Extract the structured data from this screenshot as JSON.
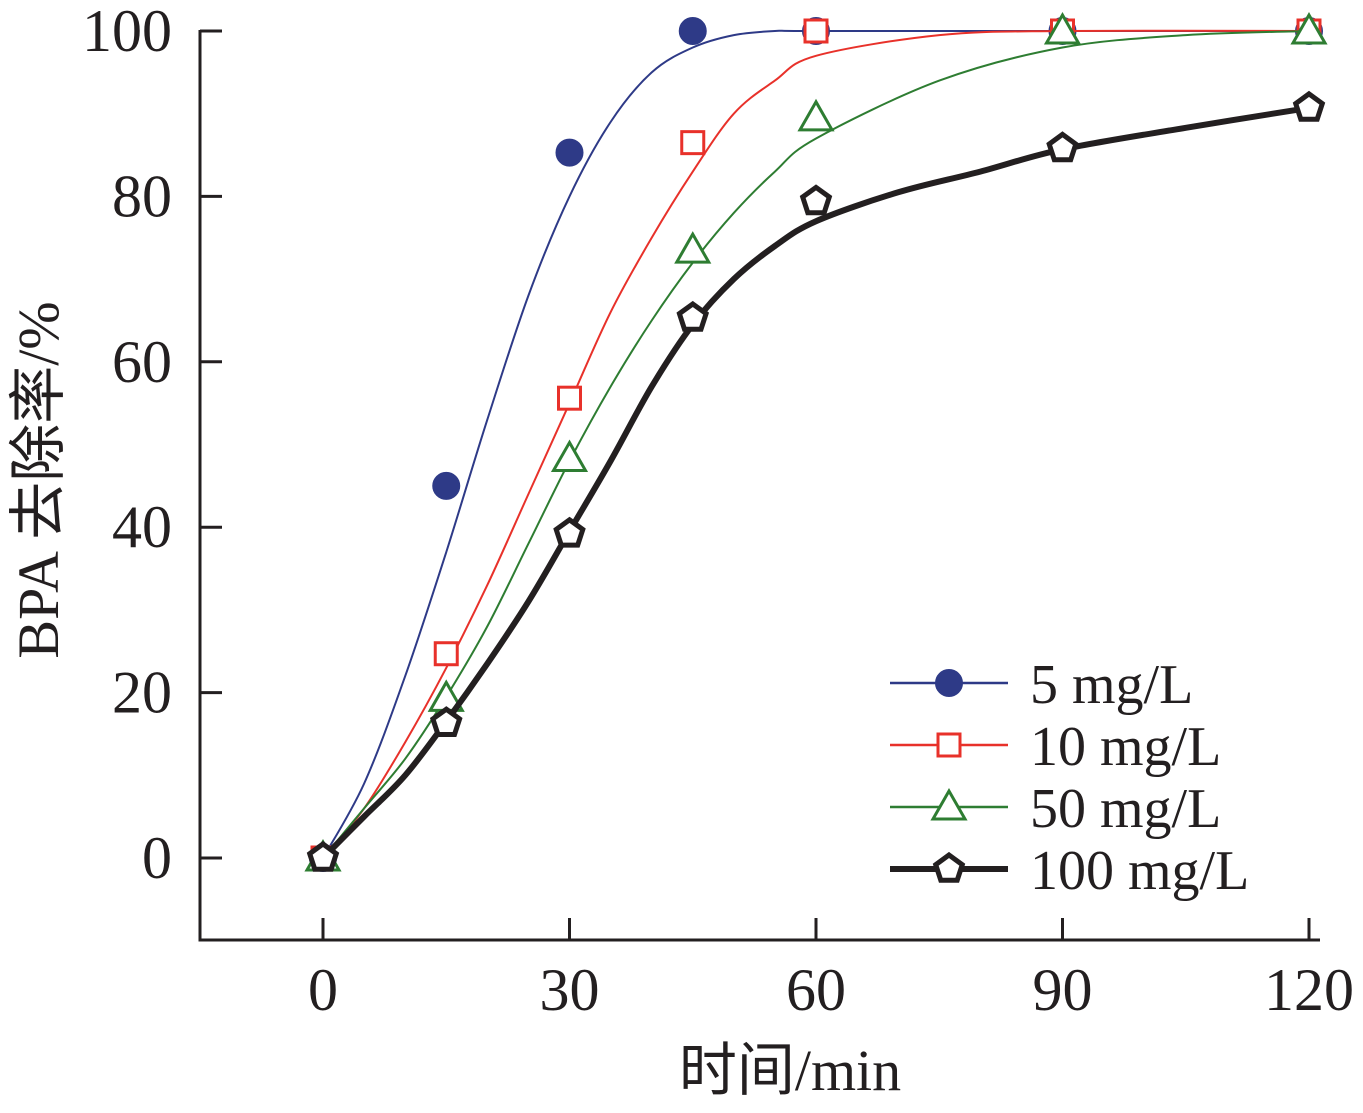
{
  "chart_data": {
    "type": "line",
    "xlabel": "时间/min",
    "ylabel": "BPA 去除率/%",
    "xlim": [
      -10,
      122
    ],
    "ylim": [
      -10,
      100
    ],
    "xticks": [
      0,
      30,
      60,
      90,
      120
    ],
    "yticks": [
      0,
      20,
      40,
      60,
      80,
      100
    ],
    "grid": false,
    "legend_position": "bottom-right",
    "x": [
      0,
      15,
      30,
      45,
      60,
      90,
      120
    ],
    "series": [
      {
        "name": "5 mg/L",
        "marker": "filled-circle",
        "color": "#2e3a87",
        "values": [
          0,
          45,
          85.3,
          100,
          100,
          100,
          100
        ],
        "fit": [
          [
            0,
            0
          ],
          [
            5,
            9
          ],
          [
            10,
            22
          ],
          [
            15,
            37
          ],
          [
            20,
            53
          ],
          [
            25,
            68
          ],
          [
            30,
            80
          ],
          [
            35,
            89
          ],
          [
            40,
            95
          ],
          [
            45,
            98
          ],
          [
            50,
            99.5
          ],
          [
            55,
            100
          ],
          [
            60,
            100
          ],
          [
            90,
            100
          ],
          [
            120,
            100
          ]
        ]
      },
      {
        "name": "10 mg/L",
        "marker": "open-square",
        "color": "#e8312a",
        "values": [
          0,
          24.7,
          55.6,
          86.5,
          100,
          100,
          100
        ],
        "fit": [
          [
            0,
            0
          ],
          [
            5,
            6
          ],
          [
            10,
            14
          ],
          [
            15,
            23
          ],
          [
            20,
            33
          ],
          [
            25,
            44
          ],
          [
            30,
            55
          ],
          [
            35,
            66
          ],
          [
            40,
            75
          ],
          [
            45,
            83
          ],
          [
            50,
            90
          ],
          [
            55,
            94
          ],
          [
            60,
            97
          ],
          [
            75,
            99.5
          ],
          [
            90,
            100
          ],
          [
            120,
            100
          ]
        ]
      },
      {
        "name": "50 mg/L",
        "marker": "open-triangle",
        "color": "#2e7d32",
        "values": [
          0,
          19.3,
          48.3,
          73.5,
          89.5,
          100,
          100
        ],
        "fit": [
          [
            0,
            0
          ],
          [
            5,
            6
          ],
          [
            10,
            12
          ],
          [
            15,
            19.5
          ],
          [
            20,
            28
          ],
          [
            25,
            38
          ],
          [
            30,
            48
          ],
          [
            35,
            57
          ],
          [
            40,
            65
          ],
          [
            45,
            72
          ],
          [
            50,
            78
          ],
          [
            55,
            83
          ],
          [
            60,
            87
          ],
          [
            75,
            94
          ],
          [
            90,
            98
          ],
          [
            105,
            99.5
          ],
          [
            120,
            100
          ]
        ]
      },
      {
        "name": "100 mg/L",
        "marker": "open-pentagon",
        "color": "#231f20",
        "values": [
          0,
          16.3,
          39.2,
          65.3,
          79.4,
          85.8,
          90.7
        ],
        "fit": [
          [
            0,
            0
          ],
          [
            5,
            5
          ],
          [
            10,
            10
          ],
          [
            15,
            16.5
          ],
          [
            20,
            23.5
          ],
          [
            25,
            31
          ],
          [
            30,
            39.5
          ],
          [
            35,
            48
          ],
          [
            40,
            57
          ],
          [
            45,
            64.5
          ],
          [
            50,
            70
          ],
          [
            55,
            74
          ],
          [
            60,
            77
          ],
          [
            70,
            80.5
          ],
          [
            80,
            83
          ],
          [
            90,
            85.7
          ],
          [
            105,
            88.3
          ],
          [
            120,
            90.7
          ]
        ]
      }
    ]
  }
}
